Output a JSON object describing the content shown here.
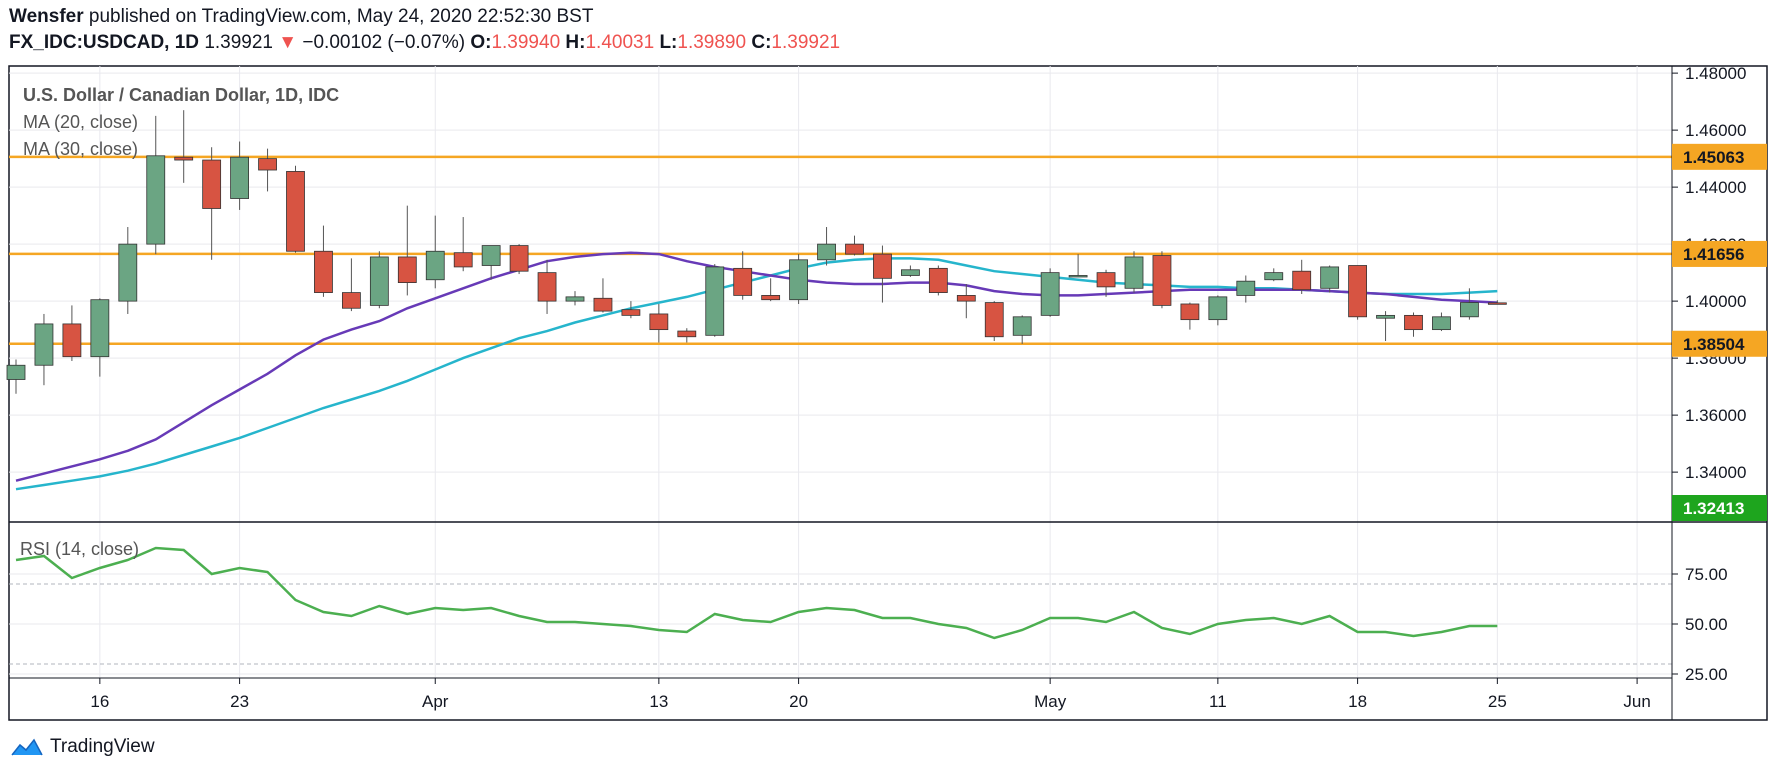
{
  "header": {
    "author": "Wensfer",
    "published_text": "published on TradingView.com, May 24, 2020 22:52:30 BST",
    "symbol": "FX_IDC:USDCAD, 1D",
    "last": "1.39921",
    "change_arrow": "▼",
    "change": "−0.00102 (−0.07%)",
    "o_label": "O:",
    "o_value": "1.39940",
    "h_label": "H:",
    "h_value": "1.40031",
    "l_label": "L:",
    "l_value": "1.39890",
    "c_label": "C:",
    "c_value": "1.39921"
  },
  "legend": {
    "title": "U.S. Dollar / Canadian Dollar, 1D, IDC",
    "ma20": "MA (20, close)",
    "ma30": "MA (30, close)",
    "rsi": "RSI (14, close)"
  },
  "footer": {
    "brand": "TradingView"
  },
  "colors": {
    "up": "#6ba583",
    "down": "#d75442",
    "ma20": "#673ab7",
    "ma30": "#26b5cc",
    "hline": "#f5a623",
    "rsi": "#4caf50",
    "price_badge": "#1ea51e",
    "axis": "#131722"
  },
  "chart_data": [
    {
      "type": "candlestick",
      "title": "U.S. Dollar / Canadian Dollar, 1D, IDC",
      "ylim": [
        1.3225,
        1.4825
      ],
      "y_ticks": [
        "1.34000",
        "1.36000",
        "1.38000",
        "1.40000",
        "1.42000",
        "1.44000",
        "1.46000",
        "1.48000"
      ],
      "x_ticks": [
        {
          "label": "16",
          "index": 3
        },
        {
          "label": "23",
          "index": 8
        },
        {
          "label": "Apr",
          "index": 15
        },
        {
          "label": "13",
          "index": 23
        },
        {
          "label": "20",
          "index": 28
        },
        {
          "label": "May",
          "index": 37
        },
        {
          "label": "11",
          "index": 43
        },
        {
          "label": "18",
          "index": 48
        },
        {
          "label": "25",
          "index": 53
        },
        {
          "label": "Jun",
          "index": 58
        }
      ],
      "horizontal_levels": [
        {
          "label": "1.45063",
          "value": 1.45063
        },
        {
          "label": "1.41656",
          "value": 1.41656
        },
        {
          "label": "1.38504",
          "value": 1.38504
        }
      ],
      "price_badge": {
        "label": "1.32413",
        "value": 1.32413
      },
      "candles": [
        {
          "o": 1.3725,
          "h": 1.3795,
          "l": 1.3675,
          "c": 1.3775
        },
        {
          "o": 1.3775,
          "h": 1.3955,
          "l": 1.3705,
          "c": 1.392
        },
        {
          "o": 1.392,
          "h": 1.3985,
          "l": 1.379,
          "c": 1.3805
        },
        {
          "o": 1.3805,
          "h": 1.401,
          "l": 1.3735,
          "c": 1.4005
        },
        {
          "o": 1.4,
          "h": 1.426,
          "l": 1.3955,
          "c": 1.42
        },
        {
          "o": 1.42,
          "h": 1.465,
          "l": 1.4165,
          "c": 1.451
        },
        {
          "o": 1.4505,
          "h": 1.467,
          "l": 1.4415,
          "c": 1.4495
        },
        {
          "o": 1.4495,
          "h": 1.454,
          "l": 1.4145,
          "c": 1.4325
        },
        {
          "o": 1.436,
          "h": 1.456,
          "l": 1.432,
          "c": 1.4505
        },
        {
          "o": 1.45,
          "h": 1.4535,
          "l": 1.4385,
          "c": 1.446
        },
        {
          "o": 1.4455,
          "h": 1.4475,
          "l": 1.417,
          "c": 1.4175
        },
        {
          "o": 1.4175,
          "h": 1.4265,
          "l": 1.4015,
          "c": 1.403
        },
        {
          "o": 1.403,
          "h": 1.415,
          "l": 1.3965,
          "c": 1.3975
        },
        {
          "o": 1.3985,
          "h": 1.4175,
          "l": 1.3975,
          "c": 1.4155
        },
        {
          "o": 1.4155,
          "h": 1.4335,
          "l": 1.402,
          "c": 1.4065
        },
        {
          "o": 1.4075,
          "h": 1.43,
          "l": 1.4045,
          "c": 1.4175
        },
        {
          "o": 1.417,
          "h": 1.4295,
          "l": 1.4105,
          "c": 1.412
        },
        {
          "o": 1.4125,
          "h": 1.4195,
          "l": 1.4075,
          "c": 1.4195
        },
        {
          "o": 1.4195,
          "h": 1.42,
          "l": 1.4095,
          "c": 1.4105
        },
        {
          "o": 1.41,
          "h": 1.4145,
          "l": 1.3955,
          "c": 1.4
        },
        {
          "o": 1.4,
          "h": 1.4035,
          "l": 1.3985,
          "c": 1.4015
        },
        {
          "o": 1.401,
          "h": 1.408,
          "l": 1.396,
          "c": 1.3965
        },
        {
          "o": 1.397,
          "h": 1.4,
          "l": 1.394,
          "c": 1.395
        },
        {
          "o": 1.3955,
          "h": 1.399,
          "l": 1.3855,
          "c": 1.39
        },
        {
          "o": 1.3895,
          "h": 1.3905,
          "l": 1.3855,
          "c": 1.3875
        },
        {
          "o": 1.388,
          "h": 1.413,
          "l": 1.3875,
          "c": 1.412
        },
        {
          "o": 1.4115,
          "h": 1.4175,
          "l": 1.4005,
          "c": 1.402
        },
        {
          "o": 1.402,
          "h": 1.408,
          "l": 1.4,
          "c": 1.4005
        },
        {
          "o": 1.4005,
          "h": 1.4165,
          "l": 1.399,
          "c": 1.4145
        },
        {
          "o": 1.4145,
          "h": 1.426,
          "l": 1.4125,
          "c": 1.42
        },
        {
          "o": 1.42,
          "h": 1.423,
          "l": 1.416,
          "c": 1.4165
        },
        {
          "o": 1.4165,
          "h": 1.4195,
          "l": 1.3995,
          "c": 1.408
        },
        {
          "o": 1.409,
          "h": 1.4125,
          "l": 1.4085,
          "c": 1.411
        },
        {
          "o": 1.4115,
          "h": 1.4125,
          "l": 1.402,
          "c": 1.403
        },
        {
          "o": 1.402,
          "h": 1.406,
          "l": 1.394,
          "c": 1.4
        },
        {
          "o": 1.3995,
          "h": 1.4,
          "l": 1.386,
          "c": 1.3875
        },
        {
          "o": 1.388,
          "h": 1.395,
          "l": 1.385,
          "c": 1.3945
        },
        {
          "o": 1.395,
          "h": 1.4115,
          "l": 1.3945,
          "c": 1.41
        },
        {
          "o": 1.409,
          "h": 1.4165,
          "l": 1.4085,
          "c": 1.409
        },
        {
          "o": 1.41,
          "h": 1.411,
          "l": 1.4015,
          "c": 1.405
        },
        {
          "o": 1.4045,
          "h": 1.4175,
          "l": 1.403,
          "c": 1.4155
        },
        {
          "o": 1.416,
          "h": 1.4175,
          "l": 1.3975,
          "c": 1.3985
        },
        {
          "o": 1.399,
          "h": 1.3995,
          "l": 1.39,
          "c": 1.3935
        },
        {
          "o": 1.3935,
          "h": 1.402,
          "l": 1.3915,
          "c": 1.4015
        },
        {
          "o": 1.402,
          "h": 1.409,
          "l": 1.3995,
          "c": 1.407
        },
        {
          "o": 1.4075,
          "h": 1.4115,
          "l": 1.407,
          "c": 1.41
        },
        {
          "o": 1.4105,
          "h": 1.4145,
          "l": 1.4025,
          "c": 1.404
        },
        {
          "o": 1.4045,
          "h": 1.4125,
          "l": 1.403,
          "c": 1.412
        },
        {
          "o": 1.4125,
          "h": 1.4125,
          "l": 1.3935,
          "c": 1.3945
        },
        {
          "o": 1.394,
          "h": 1.3965,
          "l": 1.386,
          "c": 1.395
        },
        {
          "o": 1.395,
          "h": 1.396,
          "l": 1.3875,
          "c": 1.39
        },
        {
          "o": 1.39,
          "h": 1.396,
          "l": 1.3895,
          "c": 1.3945
        },
        {
          "o": 1.3945,
          "h": 1.4045,
          "l": 1.3935,
          "c": 1.3995
        },
        {
          "o": 1.3994,
          "h": 1.4003,
          "l": 1.3989,
          "c": 1.3992
        }
      ],
      "ma20": [
        1.337,
        1.3395,
        1.342,
        1.3445,
        1.3475,
        1.3515,
        1.3575,
        1.3635,
        1.369,
        1.3745,
        1.381,
        1.3865,
        1.39,
        1.393,
        1.3975,
        1.401,
        1.4045,
        1.408,
        1.411,
        1.414,
        1.4155,
        1.4165,
        1.417,
        1.4165,
        1.414,
        1.412,
        1.4105,
        1.409,
        1.4075,
        1.4065,
        1.406,
        1.406,
        1.4065,
        1.4065,
        1.4055,
        1.4035,
        1.4025,
        1.402,
        1.402,
        1.4025,
        1.403,
        1.4035,
        1.404,
        1.404,
        1.404,
        1.404,
        1.404,
        1.4035,
        1.403,
        1.4025,
        1.4015,
        1.4005,
        1.4,
        1.3995
      ],
      "ma30": [
        1.334,
        1.3355,
        1.337,
        1.3385,
        1.3405,
        1.343,
        1.346,
        1.349,
        1.352,
        1.3555,
        1.359,
        1.3625,
        1.3655,
        1.3685,
        1.372,
        1.376,
        1.38,
        1.3835,
        1.387,
        1.3895,
        1.3925,
        1.395,
        1.3975,
        1.3995,
        1.4015,
        1.404,
        1.4065,
        1.409,
        1.4115,
        1.4135,
        1.4145,
        1.415,
        1.415,
        1.4145,
        1.4125,
        1.4105,
        1.4095,
        1.4085,
        1.4075,
        1.4065,
        1.406,
        1.4055,
        1.405,
        1.405,
        1.4045,
        1.4045,
        1.404,
        1.4035,
        1.403,
        1.4025,
        1.4025,
        1.4025,
        1.403,
        1.4035
      ]
    },
    {
      "type": "line",
      "title": "RSI (14, close)",
      "ylim": [
        23,
        101
      ],
      "y_ticks": [
        "25.00",
        "50.00",
        "75.00"
      ],
      "bands": [
        30,
        70
      ],
      "values": [
        82,
        84,
        73,
        78,
        82,
        88,
        87,
        75,
        78,
        76,
        62,
        56,
        54,
        59,
        55,
        58,
        57,
        58,
        54,
        51,
        51,
        50,
        49,
        47,
        46,
        55,
        52,
        51,
        56,
        58,
        57,
        53,
        53,
        50,
        48,
        43,
        47,
        53,
        53,
        51,
        56,
        48,
        45,
        50,
        52,
        53,
        50,
        54,
        46,
        46,
        44,
        46,
        49,
        49
      ]
    }
  ]
}
